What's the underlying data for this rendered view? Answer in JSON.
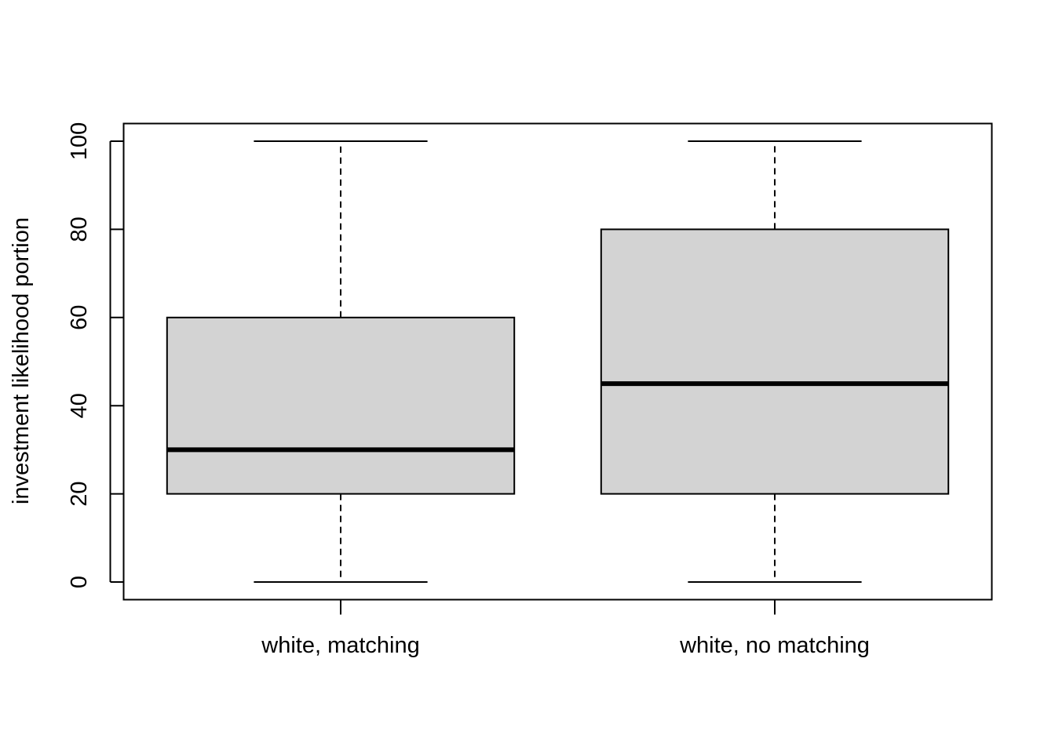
{
  "chart_data": {
    "type": "boxplot",
    "title": "",
    "xlabel": "",
    "ylabel": "investment likelihood portion",
    "categories": [
      "white, matching",
      "white, no matching"
    ],
    "boxes": [
      {
        "category": "white, matching",
        "min": 0,
        "q1": 20,
        "median": 30,
        "q3": 60,
        "max": 100
      },
      {
        "category": "white, no matching",
        "min": 0,
        "q1": 20,
        "median": 45,
        "q3": 80,
        "max": 100
      }
    ],
    "ylim": [
      -4,
      104
    ],
    "yticks": [
      0,
      20,
      40,
      60,
      80,
      100
    ],
    "grid": false,
    "legend": "none",
    "box_fill": "#d3d3d3",
    "line_color": "#000000"
  }
}
